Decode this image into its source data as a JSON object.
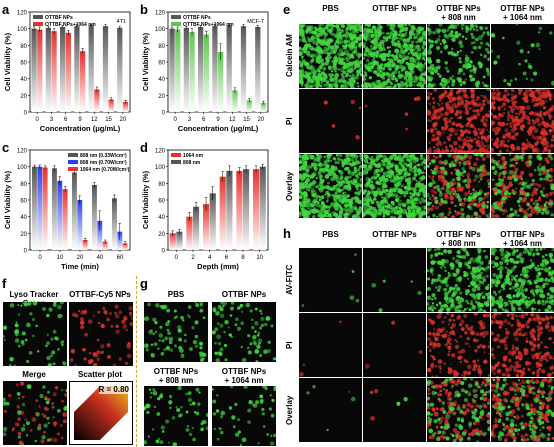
{
  "panel_letters": {
    "a": "a",
    "b": "b",
    "c": "c",
    "d": "d",
    "e": "e",
    "f": "f",
    "g": "g",
    "h": "h"
  },
  "colors": {
    "gray": "#555555",
    "red": "#e8302c",
    "green": "#5ac84a",
    "blue": "#2b3ff0",
    "microscopy_bg": "#080808"
  },
  "chart_data": [
    {
      "panel": "a",
      "type": "bar",
      "annotation": "4T1",
      "categories": [
        "0",
        "3",
        "6",
        "9",
        "12",
        "15",
        "20"
      ],
      "series": [
        {
          "name": "OTTBF NPs",
          "values": [
            100,
            101,
            102,
            103,
            104,
            103,
            101
          ],
          "errors": [
            3,
            2,
            2,
            2,
            1,
            2,
            2
          ]
        },
        {
          "name": "OTTBF NPs+1064 nm",
          "values": [
            99,
            97,
            95,
            73,
            27,
            15,
            12
          ],
          "errors": [
            3,
            3,
            3,
            3,
            3,
            2,
            2
          ]
        }
      ],
      "xlabel": "Concentration (μg/mL)",
      "ylabel": "Cell Viability (%)",
      "ylim": [
        0,
        120
      ],
      "yticks": [
        0,
        20,
        40,
        60,
        80,
        100,
        120
      ],
      "legend": "top-left"
    },
    {
      "panel": "b",
      "type": "bar",
      "annotation": "MCF-7",
      "categories": [
        "0",
        "3",
        "6",
        "9",
        "12",
        "15",
        "20"
      ],
      "series": [
        {
          "name": "OTTBF NPs",
          "values": [
            100,
            101,
            102,
            103,
            104,
            103,
            102
          ],
          "errors": [
            2,
            2,
            2,
            2,
            2,
            2,
            2
          ]
        },
        {
          "name": "OTTBF NPs+1064 nm",
          "values": [
            99,
            96,
            93,
            72,
            26,
            14,
            11
          ],
          "errors": [
            3,
            4,
            4,
            10,
            3,
            2,
            2
          ]
        }
      ],
      "xlabel": "Concentration (μg/mL)",
      "ylabel": "Cell Viability (%)",
      "ylim": [
        0,
        120
      ],
      "yticks": [
        0,
        20,
        40,
        60,
        80,
        100,
        120
      ],
      "legend": "top-left"
    },
    {
      "panel": "c",
      "type": "bar",
      "categories": [
        "0",
        "10",
        "20",
        "40",
        "60"
      ],
      "series": [
        {
          "name": "808 nm (0.33W/cm²)",
          "values": [
            100,
            98,
            93,
            78,
            62
          ],
          "errors": [
            2,
            3,
            3,
            3,
            4
          ]
        },
        {
          "name": "808 nm (0.70W/cm²)",
          "values": [
            100,
            83,
            60,
            35,
            22
          ],
          "errors": [
            2,
            5,
            5,
            12,
            10
          ]
        },
        {
          "name": "1064 nm (0.70W/cm²)",
          "values": [
            99,
            73,
            12,
            10,
            8
          ],
          "errors": [
            2,
            3,
            2,
            2,
            2
          ]
        }
      ],
      "xlabel": "Time (min)",
      "ylabel": "Cell Viability (%)",
      "ylim": [
        0,
        120
      ],
      "yticks": [
        0,
        20,
        40,
        60,
        80,
        100,
        120
      ],
      "legend": "top-right"
    },
    {
      "panel": "d",
      "type": "bar",
      "categories": [
        "0",
        "2",
        "4",
        "6",
        "8",
        "10"
      ],
      "series": [
        {
          "name": "1064 nm",
          "values": [
            20,
            40,
            55,
            88,
            95,
            97
          ],
          "errors": [
            3,
            5,
            8,
            6,
            4,
            4
          ]
        },
        {
          "name": "808 nm",
          "values": [
            22,
            52,
            68,
            95,
            97,
            100
          ],
          "errors": [
            3,
            5,
            8,
            6,
            4,
            3
          ]
        }
      ],
      "xlabel": "Depth (mm)",
      "ylabel": "Cell Viability (%)",
      "ylim": [
        0,
        120
      ],
      "yticks": [
        0,
        20,
        40,
        60,
        80,
        100,
        120
      ],
      "legend": "top-left"
    }
  ],
  "panel_e": {
    "columns": [
      "PBS",
      "OTTBF NPs",
      "OTTBF NPs\n+ 808 nm",
      "OTTBF NPs\n+ 1064 nm"
    ],
    "rows": [
      "Calcein AM",
      "PI",
      "Overlay"
    ]
  },
  "panel_f": {
    "labels": [
      "Lyso Tracker Green",
      "OTTBF-Cy5 NPs",
      "Merge",
      "Scatter plot"
    ],
    "r_value": "R = 0.80"
  },
  "panel_g": {
    "labels": [
      "PBS",
      "OTTBF NPs",
      "OTTBF NPs\n+ 808 nm",
      "OTTBF NPs\n+ 1064 nm"
    ]
  },
  "panel_h": {
    "columns": [
      "PBS",
      "OTTBF NPs",
      "OTTBF NPs\n+ 808 nm",
      "OTTBF NPs\n+ 1064 nm"
    ],
    "rows": [
      "AV-FITC",
      "PI",
      "Overlay"
    ]
  }
}
